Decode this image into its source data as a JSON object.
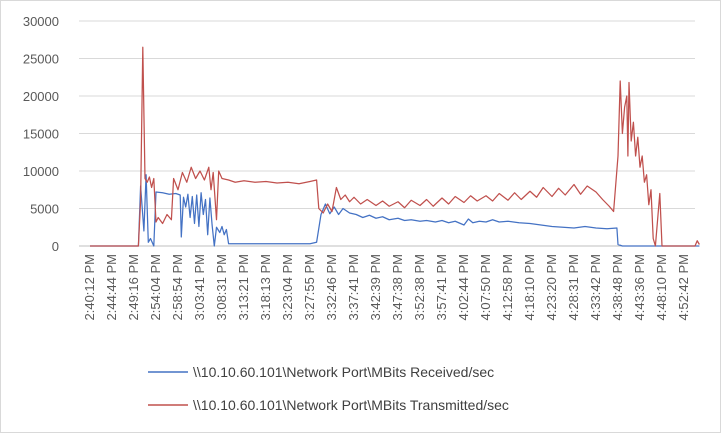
{
  "chart_data": {
    "type": "line",
    "title": "",
    "xlabel": "",
    "ylabel": "",
    "ylim": [
      0,
      30000
    ],
    "yticks": [
      0,
      5000,
      10000,
      15000,
      20000,
      25000,
      30000
    ],
    "ytick_labels": [
      "0",
      "5000",
      "10000",
      "15000",
      "20000",
      "25000",
      "30000"
    ],
    "xtick_labels": [
      "2:40:12 PM",
      "2:44:44 PM",
      "2:49:16 PM",
      "2:54:04 PM",
      "2:58:54 PM",
      "3:03:41 PM",
      "3:08:31 PM",
      "3:13:21 PM",
      "3:18:13 PM",
      "3:23:04 PM",
      "3:27:55 PM",
      "3:32:46 PM",
      "3:37:41 PM",
      "3:42:39 PM",
      "3:47:38 PM",
      "3:52:38 PM",
      "3:57:41 PM",
      "4:02:44 PM",
      "4:07:50 PM",
      "4:12:58 PM",
      "4:18:10 PM",
      "4:23:20 PM",
      "4:28:31 PM",
      "4:33:42 PM",
      "4:38:48 PM",
      "4:43:36 PM",
      "4:48:10 PM",
      "4:52:42 PM"
    ],
    "grid": true,
    "legend": "bottom",
    "series": [
      {
        "name": "\\\\10.10.60.101\\Network Port\\MBits Received/sec",
        "color": "#4472c4",
        "points": [
          [
            0,
            0
          ],
          [
            2.2,
            0
          ],
          [
            2.3,
            8000
          ],
          [
            2.45,
            2000
          ],
          [
            2.55,
            9500
          ],
          [
            2.65,
            500
          ],
          [
            2.75,
            1000
          ],
          [
            2.9,
            0
          ],
          [
            3.0,
            7200
          ],
          [
            3.3,
            7100
          ],
          [
            3.6,
            6900
          ],
          [
            3.9,
            7000
          ],
          [
            4.1,
            6800
          ],
          [
            4.15,
            1200
          ],
          [
            4.25,
            6500
          ],
          [
            4.35,
            5200
          ],
          [
            4.45,
            6900
          ],
          [
            4.55,
            3800
          ],
          [
            4.65,
            6600
          ],
          [
            4.75,
            3000
          ],
          [
            4.85,
            6800
          ],
          [
            4.95,
            2600
          ],
          [
            5.05,
            7100
          ],
          [
            5.15,
            4200
          ],
          [
            5.25,
            6200
          ],
          [
            5.35,
            1500
          ],
          [
            5.45,
            6400
          ],
          [
            5.55,
            2800
          ],
          [
            5.65,
            0
          ],
          [
            5.75,
            2500
          ],
          [
            5.9,
            1800
          ],
          [
            6.0,
            2600
          ],
          [
            6.1,
            1500
          ],
          [
            6.2,
            2200
          ],
          [
            6.3,
            300
          ],
          [
            7.0,
            300
          ],
          [
            8.0,
            300
          ],
          [
            9.0,
            300
          ],
          [
            10.0,
            300
          ],
          [
            10.3,
            500
          ],
          [
            10.5,
            4200
          ],
          [
            10.7,
            5600
          ],
          [
            10.9,
            4300
          ],
          [
            11.1,
            5200
          ],
          [
            11.3,
            4200
          ],
          [
            11.5,
            5000
          ],
          [
            11.8,
            4400
          ],
          [
            12.1,
            4200
          ],
          [
            12.4,
            3800
          ],
          [
            12.7,
            4100
          ],
          [
            13.0,
            3700
          ],
          [
            13.3,
            3900
          ],
          [
            13.6,
            3500
          ],
          [
            14.0,
            3700
          ],
          [
            14.3,
            3400
          ],
          [
            14.6,
            3500
          ],
          [
            15.0,
            3300
          ],
          [
            15.3,
            3400
          ],
          [
            15.7,
            3200
          ],
          [
            16.0,
            3400
          ],
          [
            16.3,
            3100
          ],
          [
            16.6,
            3300
          ],
          [
            17.0,
            2800
          ],
          [
            17.2,
            3600
          ],
          [
            17.4,
            3100
          ],
          [
            17.7,
            3300
          ],
          [
            18.0,
            3200
          ],
          [
            18.3,
            3500
          ],
          [
            18.6,
            3200
          ],
          [
            19.0,
            3300
          ],
          [
            19.5,
            3100
          ],
          [
            20.0,
            3000
          ],
          [
            20.5,
            2800
          ],
          [
            21.0,
            2600
          ],
          [
            21.5,
            2500
          ],
          [
            22.0,
            2400
          ],
          [
            22.5,
            2600
          ],
          [
            23.0,
            2400
          ],
          [
            23.5,
            2300
          ],
          [
            23.95,
            2400
          ],
          [
            24.0,
            200
          ],
          [
            24.2,
            0
          ],
          [
            26.0,
            0
          ],
          [
            27.0,
            0
          ],
          [
            27.7,
            0
          ]
        ]
      },
      {
        "name": "\\\\10.10.60.101\\Network Port\\MBits Transmitted/sec",
        "color": "#c0504d",
        "points": [
          [
            0,
            0
          ],
          [
            2.2,
            0
          ],
          [
            2.3,
            6000
          ],
          [
            2.4,
            26500
          ],
          [
            2.5,
            9000
          ],
          [
            2.6,
            8500
          ],
          [
            2.7,
            9200
          ],
          [
            2.8,
            7800
          ],
          [
            2.9,
            9000
          ],
          [
            3.0,
            3200
          ],
          [
            3.1,
            3800
          ],
          [
            3.3,
            3000
          ],
          [
            3.5,
            4200
          ],
          [
            3.7,
            3500
          ],
          [
            3.8,
            9000
          ],
          [
            4.0,
            7500
          ],
          [
            4.2,
            9800
          ],
          [
            4.4,
            8500
          ],
          [
            4.6,
            10500
          ],
          [
            4.8,
            9000
          ],
          [
            5.0,
            10000
          ],
          [
            5.2,
            8800
          ],
          [
            5.4,
            10500
          ],
          [
            5.5,
            7500
          ],
          [
            5.6,
            9800
          ],
          [
            5.75,
            3500
          ],
          [
            5.85,
            10000
          ],
          [
            6.0,
            9000
          ],
          [
            6.3,
            8800
          ],
          [
            6.6,
            8500
          ],
          [
            7.0,
            8700
          ],
          [
            7.5,
            8500
          ],
          [
            8.0,
            8600
          ],
          [
            8.5,
            8400
          ],
          [
            9.0,
            8500
          ],
          [
            9.5,
            8300
          ],
          [
            10.0,
            8600
          ],
          [
            10.3,
            8800
          ],
          [
            10.4,
            5000
          ],
          [
            10.6,
            4400
          ],
          [
            10.8,
            5600
          ],
          [
            11.0,
            4600
          ],
          [
            11.2,
            7800
          ],
          [
            11.4,
            6200
          ],
          [
            11.6,
            6800
          ],
          [
            11.8,
            5900
          ],
          [
            12.0,
            6500
          ],
          [
            12.3,
            5600
          ],
          [
            12.6,
            6200
          ],
          [
            13.0,
            5400
          ],
          [
            13.3,
            6000
          ],
          [
            13.6,
            5300
          ],
          [
            14.0,
            5900
          ],
          [
            14.3,
            5100
          ],
          [
            14.6,
            6100
          ],
          [
            15.0,
            5400
          ],
          [
            15.3,
            6200
          ],
          [
            15.6,
            5300
          ],
          [
            16.0,
            6400
          ],
          [
            16.3,
            5600
          ],
          [
            16.6,
            6600
          ],
          [
            17.0,
            5800
          ],
          [
            17.3,
            6700
          ],
          [
            17.6,
            6000
          ],
          [
            18.0,
            6700
          ],
          [
            18.3,
            6000
          ],
          [
            18.6,
            7000
          ],
          [
            19.0,
            6100
          ],
          [
            19.3,
            7100
          ],
          [
            19.6,
            6200
          ],
          [
            20.0,
            7300
          ],
          [
            20.3,
            6500
          ],
          [
            20.6,
            7800
          ],
          [
            21.0,
            6600
          ],
          [
            21.3,
            7700
          ],
          [
            21.6,
            6800
          ],
          [
            22.0,
            8200
          ],
          [
            22.3,
            6900
          ],
          [
            22.6,
            8000
          ],
          [
            23.0,
            7200
          ],
          [
            23.3,
            6200
          ],
          [
            23.6,
            5300
          ],
          [
            23.8,
            4600
          ],
          [
            24.0,
            12000
          ],
          [
            24.1,
            22000
          ],
          [
            24.2,
            15000
          ],
          [
            24.3,
            18500
          ],
          [
            24.4,
            20000
          ],
          [
            24.45,
            12000
          ],
          [
            24.5,
            21800
          ],
          [
            24.6,
            14000
          ],
          [
            24.7,
            16500
          ],
          [
            24.8,
            12000
          ],
          [
            24.9,
            14500
          ],
          [
            25.0,
            10500
          ],
          [
            25.1,
            12000
          ],
          [
            25.2,
            8500
          ],
          [
            25.3,
            9500
          ],
          [
            25.4,
            5500
          ],
          [
            25.5,
            7500
          ],
          [
            25.6,
            1000
          ],
          [
            25.7,
            0
          ],
          [
            25.9,
            7000
          ],
          [
            26.0,
            0
          ],
          [
            27.0,
            0
          ],
          [
            27.5,
            0
          ],
          [
            27.6,
            700
          ],
          [
            27.7,
            200
          ]
        ]
      }
    ]
  }
}
